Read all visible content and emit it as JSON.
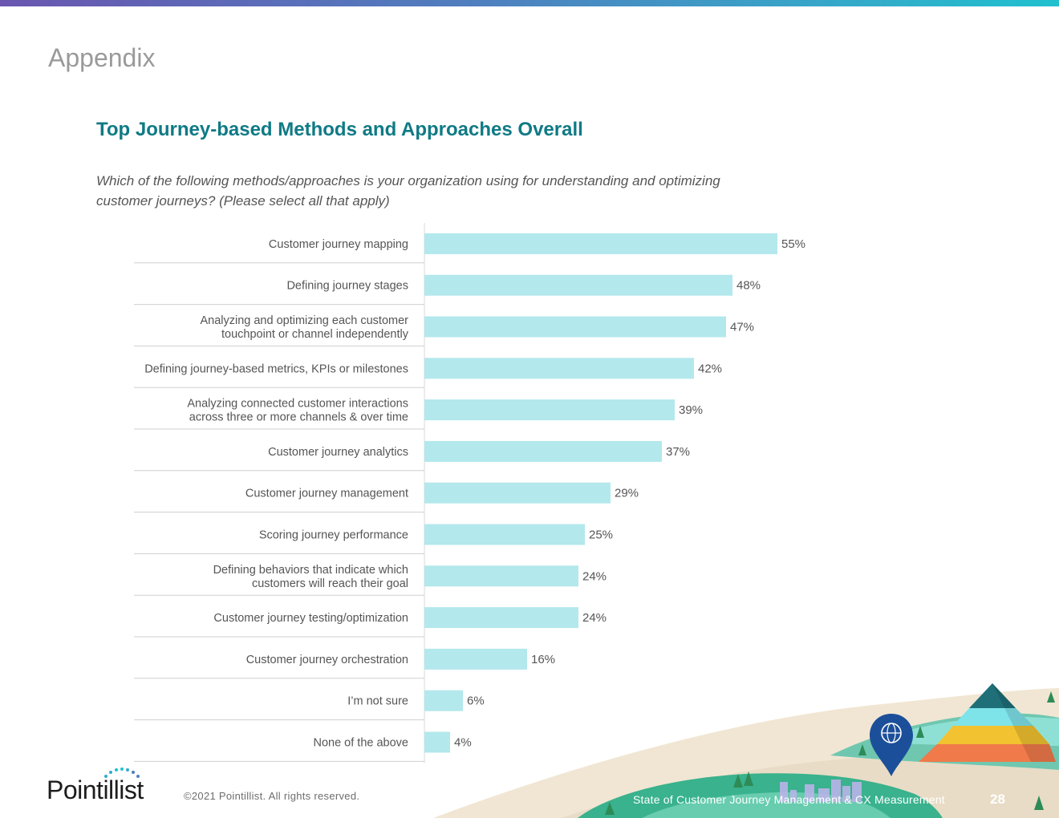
{
  "header": {
    "section_title": "Appendix"
  },
  "chart_data": {
    "type": "bar",
    "orientation": "horizontal",
    "title": "Top Journey-based Methods and Approaches Overall",
    "subtitle": "Which of the following methods/approaches is your organization using for understanding and optimizing customer journeys? (Please select all that apply)",
    "categories": [
      [
        "Customer journey mapping"
      ],
      [
        "Defining journey stages"
      ],
      [
        "Analyzing and optimizing each customer",
        "touchpoint or channel independently"
      ],
      [
        "Defining journey-based metrics, KPIs or milestones"
      ],
      [
        "Analyzing connected customer interactions",
        "across three or more channels & over time"
      ],
      [
        "Customer journey analytics"
      ],
      [
        "Customer journey management"
      ],
      [
        "Scoring journey performance"
      ],
      [
        "Defining behaviors that indicate which",
        "customers will reach their goal"
      ],
      [
        "Customer journey testing/optimization"
      ],
      [
        "Customer journey orchestration"
      ],
      [
        "I’m not sure"
      ],
      [
        "None of the above"
      ]
    ],
    "values": [
      55,
      48,
      47,
      42,
      39,
      37,
      29,
      25,
      24,
      24,
      16,
      6,
      4
    ],
    "value_suffix": "%",
    "xlim": [
      0,
      55
    ],
    "xlabel": "",
    "ylabel": "",
    "grid": false,
    "legend": "none"
  },
  "footer": {
    "logo_text": "Pointillist",
    "copyright": "©2021 Pointillist. All rights reserved.",
    "report_title": "State of Customer Journey Management & CX Measurement",
    "page_number": "28"
  },
  "colors": {
    "bar": "#b3e8ec",
    "title": "#0f7a85",
    "label": "#555555",
    "separator": "#cfcfcf",
    "axis": "#d9d9d9"
  }
}
